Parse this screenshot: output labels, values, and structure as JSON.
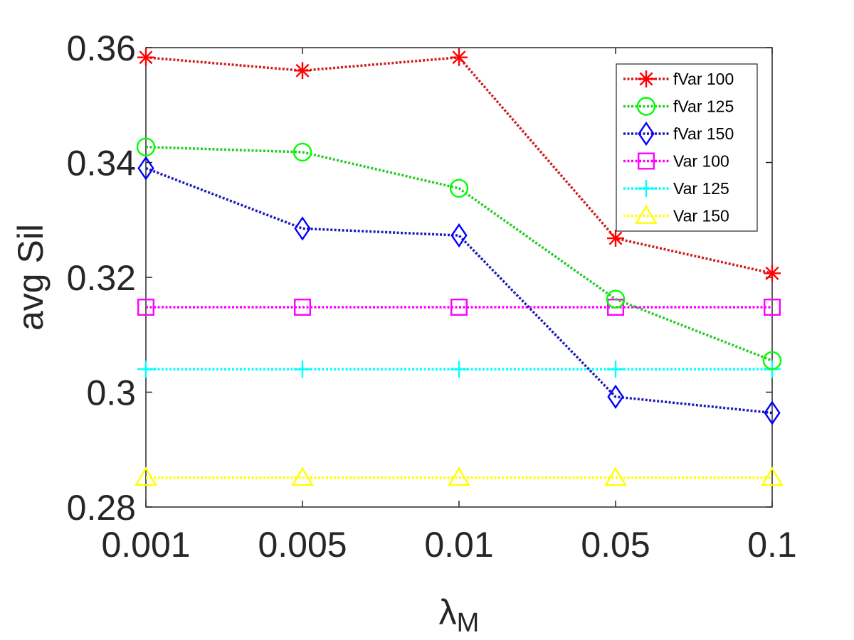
{
  "chart_data": {
    "type": "line",
    "categories": [
      "0.001",
      "0.005",
      "0.01",
      "0.05",
      "0.1"
    ],
    "ylabel": "avg Sil",
    "xlabel": {
      "base": "λ",
      "sub": "M"
    },
    "ylim": [
      0.28,
      0.36
    ],
    "yticks": [
      0.28,
      0.3,
      0.32,
      0.34,
      0.36
    ],
    "ytick_labels": [
      "0.28",
      "0.3",
      "0.32",
      "0.34",
      "0.36"
    ],
    "grid": false,
    "legend_position": "top-right",
    "series": [
      {
        "name": "fVar 100",
        "color": "#ff0000",
        "lineColor": "#cc1f1f",
        "marker": "asterisk",
        "values": [
          0.3583,
          0.356,
          0.3583,
          0.3268,
          0.3207
        ]
      },
      {
        "name": "fVar 125",
        "color": "#00ff00",
        "lineColor": "#22cc22",
        "marker": "circle",
        "values": [
          0.3427,
          0.3418,
          0.3355,
          0.3162,
          0.3055
        ]
      },
      {
        "name": "fVar 150",
        "color": "#0000ff",
        "lineColor": "#1a1ab8",
        "marker": "diamond",
        "values": [
          0.339,
          0.3285,
          0.3273,
          0.2992,
          0.2964
        ]
      },
      {
        "name": "Var 100",
        "color": "#ff00ff",
        "lineColor": "#ff00ff",
        "marker": "square",
        "values": [
          0.3148,
          0.3148,
          0.3148,
          0.3148,
          0.3148
        ]
      },
      {
        "name": "Var 125",
        "color": "#00ffff",
        "lineColor": "#00ffff",
        "marker": "plus",
        "values": [
          0.304,
          0.304,
          0.304,
          0.304,
          0.304
        ]
      },
      {
        "name": "Var 150",
        "color": "#ffff00",
        "lineColor": "#ffff00",
        "marker": "triangle",
        "values": [
          0.2851,
          0.2851,
          0.2851,
          0.2851,
          0.2851
        ]
      }
    ]
  }
}
